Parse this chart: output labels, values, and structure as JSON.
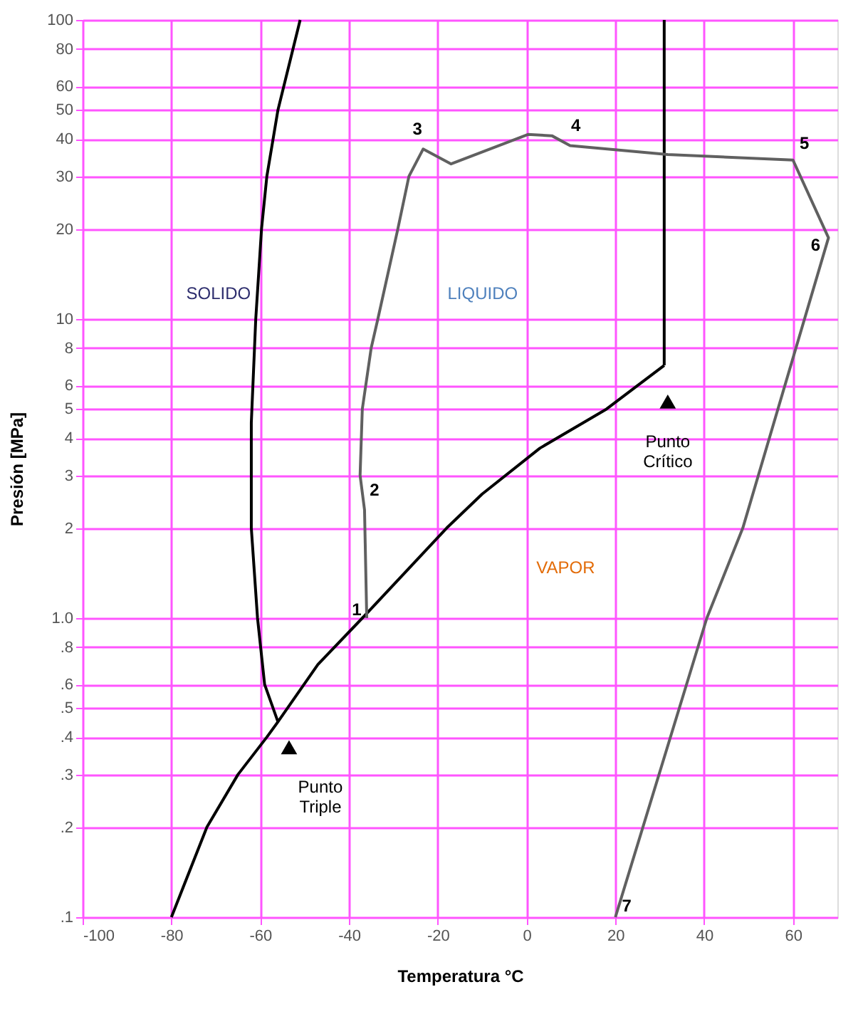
{
  "chart_data": {
    "type": "line",
    "xlabel": "Temperatura °C",
    "ylabel": "Presión   [MPa]",
    "log": "y",
    "grid": true,
    "xlim": [
      -100,
      70
    ],
    "xticks": [
      -100,
      -80,
      -60,
      -40,
      -20,
      0,
      20,
      40,
      60
    ],
    "ylim": [
      0.1,
      100
    ],
    "yticks": [
      {
        "value": 0.1,
        "label": ".1"
      },
      {
        "value": 0.2,
        "label": ".2"
      },
      {
        "value": 0.3,
        "label": ".3"
      },
      {
        "value": 0.4,
        "label": ".4"
      },
      {
        "value": 0.5,
        "label": ".5"
      },
      {
        "value": 0.6,
        "label": ".6"
      },
      {
        "value": 0.8,
        "label": ".8"
      },
      {
        "value": 1,
        "label": "1.0"
      },
      2,
      3,
      4,
      5,
      6,
      8,
      10,
      20,
      30,
      40,
      50,
      60,
      80,
      100
    ],
    "series": [
      {
        "color": "#000000",
        "x": [
          -80,
          -72,
          -65,
          -58.5,
          -56,
          -47,
          -37,
          -18,
          -10,
          3,
          18,
          31
        ],
        "values": [
          0.1,
          0.2,
          0.3,
          0.4,
          0.45,
          0.7,
          1.0,
          2,
          2.6,
          3.7,
          5,
          7
        ]
      },
      {
        "color": "#000000",
        "x": [
          -56,
          -59,
          -60.6,
          -62,
          -62,
          -61,
          -59.7,
          -58.5,
          -56,
          -51
        ],
        "values": [
          0.45,
          0.6,
          1.0,
          2,
          4.5,
          10,
          20,
          30,
          50,
          100
        ]
      },
      {
        "color": "#000000",
        "x": [
          31,
          31
        ],
        "values": [
          7,
          100
        ]
      },
      {
        "color": "#606060",
        "x": [
          -36,
          -36.5,
          -37.5,
          -37,
          -35,
          -33.5,
          -29,
          -26.5,
          -23.3,
          -17,
          0.3,
          5.7,
          9.8,
          31.8,
          60,
          68,
          48.7,
          40.6,
          20
        ],
        "values": [
          1.0,
          2.3,
          3,
          5,
          8,
          10,
          20,
          30,
          37,
          33,
          41.4,
          41,
          38,
          35.5,
          34,
          18.7,
          2,
          1.0,
          0.1
        ]
      },
      {
        "type": "scatter",
        "marker": "triangle",
        "color": "#000000",
        "x": [
          -53.5,
          31.8
        ],
        "values": [
          0.37,
          5.3
        ]
      }
    ],
    "annotations": [
      {
        "text": "1",
        "x": -36,
        "y": 1.0
      },
      {
        "text": "2",
        "x": -36.5,
        "y": 2.3
      },
      {
        "text": "3",
        "x": -23.3,
        "y": 37
      },
      {
        "text": "4",
        "x": 9.8,
        "y": 38
      },
      {
        "text": "5",
        "x": 60,
        "y": 34
      },
      {
        "text": "6",
        "x": 68,
        "y": 18.7
      },
      {
        "text": "7",
        "x": 20,
        "y": 0.1
      },
      {
        "text": "Punto\nCrítico",
        "x": 31.8,
        "y": 5.3
      },
      {
        "text": "Punto\nTriple",
        "x": -53.5,
        "y": 0.37
      },
      "SOLIDO",
      "LIQUIDO",
      "VAPOR"
    ]
  }
}
